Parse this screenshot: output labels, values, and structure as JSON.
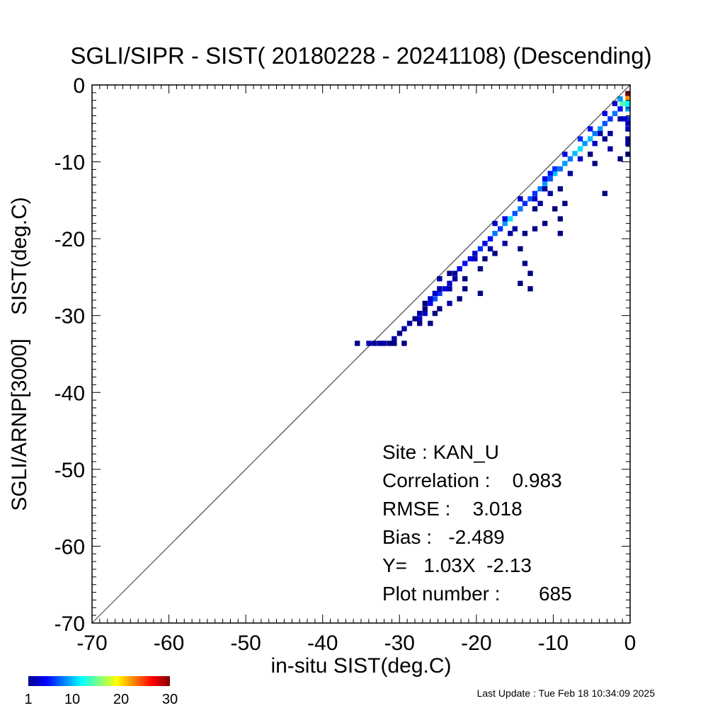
{
  "chart_data": {
    "type": "heatmap",
    "title": "SGLI/SIPR - SIST( 20180228 - 20241108) (Descending)",
    "xlabel": "in-situ SIST(deg.C)",
    "ylabel": "SGLI/ARNP[3000]    SIST(deg.C)",
    "xlim": [
      -70,
      0
    ],
    "ylim": [
      -70,
      0
    ],
    "x_ticks": [
      "-70",
      "-60",
      "-50",
      "-40",
      "-30",
      "-20",
      "-10",
      "0"
    ],
    "y_ticks": [
      "0",
      "-10",
      "-20",
      "-30",
      "-40",
      "-50",
      "-60",
      "-70"
    ],
    "one_to_one_line": true,
    "grid": false,
    "bin_size": 0.65,
    "colorbar": {
      "min": 1,
      "max": 30,
      "ticks": [
        "1",
        "10",
        "20",
        "30"
      ],
      "colormap": "jet"
    },
    "stats": {
      "site": "Site : KAN_U",
      "correlation": "Correlation :    0.983",
      "rmse": "RMSE :    3.018",
      "bias": "Bias :   -2.489",
      "regression": "Y=   1.03X  -2.13",
      "plot_number": "Plot number :       685"
    },
    "counts": [
      [
        -35.5,
        -33.6,
        1
      ],
      [
        -34.0,
        -33.6,
        3
      ],
      [
        -33.3,
        -33.6,
        2
      ],
      [
        -32.6,
        -33.6,
        2
      ],
      [
        -32.0,
        -33.6,
        2
      ],
      [
        -31.3,
        -33.6,
        1
      ],
      [
        -30.7,
        -33.6,
        1
      ],
      [
        -29.4,
        -33.6,
        1
      ],
      [
        -30.7,
        -33.0,
        2
      ],
      [
        -30.0,
        -32.3,
        1
      ],
      [
        -29.4,
        -31.7,
        2
      ],
      [
        -28.7,
        -31.0,
        2
      ],
      [
        -28.0,
        -30.4,
        1
      ],
      [
        -27.4,
        -30.4,
        3
      ],
      [
        -26.7,
        -29.7,
        3
      ],
      [
        -27.4,
        -29.7,
        2
      ],
      [
        -26.7,
        -29.1,
        1
      ],
      [
        -26.0,
        -28.4,
        4
      ],
      [
        -26.7,
        -28.4,
        1
      ],
      [
        -25.4,
        -27.8,
        7
      ],
      [
        -26.0,
        -27.8,
        3
      ],
      [
        -24.8,
        -27.1,
        6
      ],
      [
        -25.4,
        -27.1,
        3
      ],
      [
        -24.1,
        -26.5,
        4
      ],
      [
        -24.8,
        -26.5,
        2
      ],
      [
        -23.5,
        -25.8,
        3
      ],
      [
        -24.8,
        -25.2,
        2
      ],
      [
        -22.8,
        -25.2,
        2
      ],
      [
        -22.8,
        -24.5,
        2
      ],
      [
        -23.5,
        -24.5,
        1
      ],
      [
        -22.2,
        -23.9,
        4
      ],
      [
        -21.5,
        -23.2,
        5
      ],
      [
        -20.8,
        -22.6,
        4
      ],
      [
        -20.2,
        -21.9,
        3
      ],
      [
        -19.5,
        -21.3,
        6
      ],
      [
        -18.9,
        -20.6,
        4
      ],
      [
        -18.2,
        -20.0,
        5
      ],
      [
        -17.6,
        -19.3,
        8
      ],
      [
        -16.9,
        -18.7,
        6
      ],
      [
        -16.3,
        -18.0,
        9
      ],
      [
        -15.6,
        -17.4,
        11
      ],
      [
        -15.0,
        -16.7,
        7
      ],
      [
        -14.3,
        -16.1,
        8
      ],
      [
        -13.7,
        -15.4,
        6
      ],
      [
        -13.0,
        -14.8,
        7
      ],
      [
        -12.4,
        -14.1,
        6
      ],
      [
        -11.7,
        -13.5,
        8
      ],
      [
        -11.1,
        -12.8,
        9
      ],
      [
        -10.4,
        -12.2,
        7
      ],
      [
        -9.8,
        -11.5,
        10
      ],
      [
        -9.1,
        -10.9,
        8
      ],
      [
        -8.5,
        -10.2,
        9
      ],
      [
        -7.8,
        -9.6,
        8
      ],
      [
        -7.2,
        -8.9,
        10
      ],
      [
        -6.5,
        -8.3,
        11
      ],
      [
        -5.9,
        -7.6,
        9
      ],
      [
        -5.2,
        -7.0,
        10
      ],
      [
        -4.6,
        -6.3,
        8
      ],
      [
        -3.9,
        -5.7,
        9
      ],
      [
        -3.3,
        -5.0,
        7
      ],
      [
        -2.6,
        -4.4,
        6
      ],
      [
        -2.0,
        -3.7,
        8
      ],
      [
        -1.3,
        -3.1,
        5
      ],
      [
        -0.7,
        -2.4,
        15
      ],
      [
        -0.3,
        -1.8,
        22
      ],
      [
        -0.3,
        -1.1,
        30
      ],
      [
        -0.3,
        -2.4,
        12
      ],
      [
        -0.3,
        -3.1,
        9
      ],
      [
        -1.0,
        -2.4,
        14
      ],
      [
        -1.3,
        -1.8,
        9
      ],
      [
        -0.3,
        -4.4,
        6
      ],
      [
        -0.3,
        -5.0,
        4
      ],
      [
        -0.3,
        -5.7,
        3
      ],
      [
        -0.3,
        -7.0,
        2
      ],
      [
        -0.3,
        -7.6,
        2
      ],
      [
        -0.3,
        -9.0,
        1
      ],
      [
        -0.7,
        -4.4,
        3
      ],
      [
        -1.3,
        -4.4,
        2
      ],
      [
        -1.3,
        -9.6,
        1
      ],
      [
        -2.6,
        -8.3,
        2
      ],
      [
        -3.3,
        -7.0,
        1
      ],
      [
        -3.3,
        -14.1,
        1
      ],
      [
        -3.9,
        -6.3,
        2
      ],
      [
        -5.2,
        -9.0,
        1
      ],
      [
        -4.6,
        -10.2,
        1
      ],
      [
        -9.1,
        -13.5,
        1
      ],
      [
        -8.5,
        -15.4,
        1
      ],
      [
        -9.8,
        -16.1,
        1
      ],
      [
        -9.1,
        -17.4,
        1
      ],
      [
        -9.1,
        -19.3,
        1
      ],
      [
        -10.4,
        -14.1,
        2
      ],
      [
        -11.1,
        -13.5,
        2
      ],
      [
        -11.7,
        -15.4,
        2
      ],
      [
        -12.4,
        -16.1,
        1
      ],
      [
        -11.1,
        -18.0,
        1
      ],
      [
        -12.4,
        -18.7,
        1
      ],
      [
        -13.7,
        -19.3,
        1
      ],
      [
        -14.3,
        -21.3,
        1
      ],
      [
        -13.7,
        -23.2,
        1
      ],
      [
        -13.0,
        -24.5,
        1
      ],
      [
        -14.3,
        -25.8,
        1
      ],
      [
        -13.0,
        -26.5,
        1
      ],
      [
        -15.0,
        -18.7,
        2
      ],
      [
        -15.6,
        -19.3,
        2
      ],
      [
        -16.3,
        -20.6,
        2
      ],
      [
        -17.6,
        -21.9,
        1
      ],
      [
        -18.9,
        -22.6,
        1
      ],
      [
        -19.5,
        -23.9,
        1
      ],
      [
        -21.5,
        -25.2,
        1
      ],
      [
        -19.5,
        -27.1,
        1
      ],
      [
        -21.5,
        -26.5,
        1
      ],
      [
        -22.2,
        -27.8,
        1
      ],
      [
        -23.5,
        -28.4,
        2
      ],
      [
        -24.8,
        -29.1,
        1
      ],
      [
        -25.4,
        -29.7,
        1
      ],
      [
        -26.0,
        -31.0,
        1
      ],
      [
        -27.4,
        -31.0,
        1
      ],
      [
        -17.6,
        -18.0,
        3
      ],
      [
        -16.3,
        -17.4,
        4
      ],
      [
        -14.3,
        -14.8,
        3
      ],
      [
        -10.4,
        -11.5,
        5
      ],
      [
        -8.5,
        -9.0,
        4
      ],
      [
        -6.5,
        -7.0,
        6
      ],
      [
        -5.2,
        -5.7,
        5
      ],
      [
        -3.3,
        -3.7,
        4
      ],
      [
        -2.0,
        -2.4,
        3
      ],
      [
        -23.5,
        -26.5,
        2
      ],
      [
        -20.2,
        -22.6,
        3
      ],
      [
        -18.2,
        -21.3,
        2
      ],
      [
        -12.4,
        -14.8,
        3
      ],
      [
        -7.8,
        -11.5,
        2
      ],
      [
        -6.5,
        -9.6,
        3
      ],
      [
        -4.6,
        -7.6,
        3
      ],
      [
        -2.6,
        -6.3,
        2
      ],
      [
        -11.1,
        -12.2,
        4
      ],
      [
        -9.8,
        -10.9,
        6
      ]
    ]
  },
  "footer": {
    "last_update": "Last Update : Tue Feb 18 10:34:09 2025"
  }
}
